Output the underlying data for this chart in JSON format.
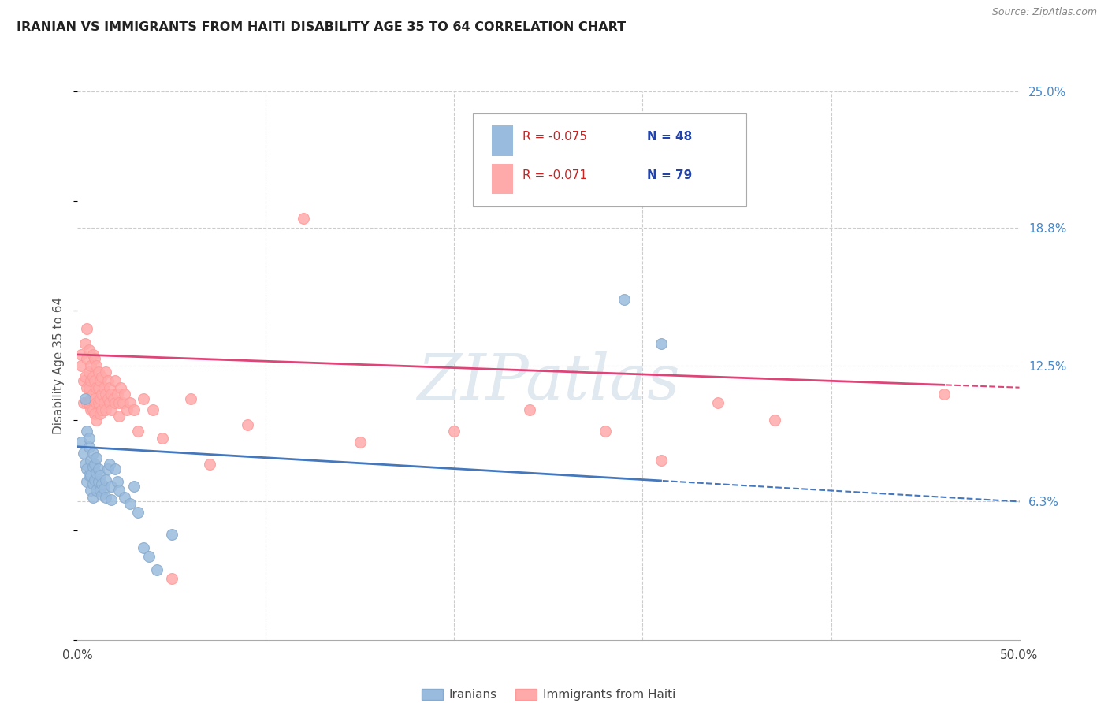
{
  "title": "IRANIAN VS IMMIGRANTS FROM HAITI DISABILITY AGE 35 TO 64 CORRELATION CHART",
  "source": "Source: ZipAtlas.com",
  "ylabel": "Disability Age 35 to 64",
  "xlim": [
    0.0,
    0.5
  ],
  "ylim": [
    0.0,
    0.25
  ],
  "xticks": [
    0.0,
    0.1,
    0.2,
    0.3,
    0.4,
    0.5
  ],
  "xticklabels": [
    "0.0%",
    "",
    "",
    "",
    "",
    "50.0%"
  ],
  "yticks_right": [
    0.063,
    0.125,
    0.188,
    0.25
  ],
  "yticklabels_right": [
    "6.3%",
    "12.5%",
    "18.8%",
    "25.0%"
  ],
  "legend_blue_R": "R = -0.075",
  "legend_blue_N": "N = 48",
  "legend_pink_R": "R = -0.071",
  "legend_pink_N": "N = 79",
  "legend_label_blue": "Iranians",
  "legend_label_pink": "Immigrants from Haiti",
  "blue_scatter_color": "#99BBDD",
  "blue_scatter_edge": "#88AACC",
  "pink_scatter_color": "#FFAAAA",
  "pink_scatter_edge": "#FF9999",
  "blue_line_color": "#4477BB",
  "pink_line_color": "#DD4477",
  "watermark_color": "#DDDDEE",
  "iranians_x": [
    0.002,
    0.003,
    0.004,
    0.004,
    0.005,
    0.005,
    0.005,
    0.006,
    0.006,
    0.006,
    0.007,
    0.007,
    0.007,
    0.008,
    0.008,
    0.008,
    0.008,
    0.009,
    0.009,
    0.01,
    0.01,
    0.01,
    0.011,
    0.011,
    0.012,
    0.012,
    0.013,
    0.013,
    0.014,
    0.015,
    0.015,
    0.016,
    0.017,
    0.018,
    0.018,
    0.02,
    0.021,
    0.022,
    0.025,
    0.028,
    0.03,
    0.032,
    0.035,
    0.038,
    0.042,
    0.05,
    0.29,
    0.31
  ],
  "iranians_y": [
    0.09,
    0.085,
    0.11,
    0.08,
    0.095,
    0.078,
    0.072,
    0.088,
    0.075,
    0.092,
    0.082,
    0.075,
    0.068,
    0.085,
    0.079,
    0.071,
    0.065,
    0.08,
    0.073,
    0.083,
    0.076,
    0.068,
    0.078,
    0.072,
    0.075,
    0.068,
    0.071,
    0.066,
    0.069,
    0.073,
    0.065,
    0.078,
    0.08,
    0.07,
    0.064,
    0.078,
    0.072,
    0.068,
    0.065,
    0.062,
    0.07,
    0.058,
    0.042,
    0.038,
    0.032,
    0.048,
    0.155,
    0.135
  ],
  "haiti_x": [
    0.002,
    0.002,
    0.003,
    0.003,
    0.004,
    0.004,
    0.005,
    0.005,
    0.005,
    0.005,
    0.006,
    0.006,
    0.006,
    0.006,
    0.007,
    0.007,
    0.007,
    0.007,
    0.008,
    0.008,
    0.008,
    0.008,
    0.009,
    0.009,
    0.009,
    0.009,
    0.01,
    0.01,
    0.01,
    0.01,
    0.011,
    0.011,
    0.011,
    0.012,
    0.012,
    0.012,
    0.013,
    0.013,
    0.013,
    0.014,
    0.014,
    0.015,
    0.015,
    0.015,
    0.016,
    0.016,
    0.017,
    0.017,
    0.018,
    0.018,
    0.019,
    0.02,
    0.02,
    0.021,
    0.022,
    0.022,
    0.023,
    0.024,
    0.025,
    0.026,
    0.028,
    0.03,
    0.032,
    0.035,
    0.04,
    0.045,
    0.05,
    0.06,
    0.07,
    0.09,
    0.12,
    0.15,
    0.2,
    0.24,
    0.28,
    0.31,
    0.34,
    0.37,
    0.46
  ],
  "haiti_y": [
    0.125,
    0.13,
    0.118,
    0.108,
    0.135,
    0.12,
    0.128,
    0.115,
    0.108,
    0.142,
    0.132,
    0.122,
    0.115,
    0.108,
    0.125,
    0.118,
    0.11,
    0.105,
    0.13,
    0.12,
    0.112,
    0.105,
    0.128,
    0.118,
    0.11,
    0.103,
    0.125,
    0.115,
    0.108,
    0.1,
    0.122,
    0.115,
    0.108,
    0.118,
    0.11,
    0.103,
    0.12,
    0.112,
    0.105,
    0.115,
    0.108,
    0.122,
    0.112,
    0.105,
    0.118,
    0.11,
    0.115,
    0.108,
    0.112,
    0.105,
    0.11,
    0.118,
    0.108,
    0.112,
    0.108,
    0.102,
    0.115,
    0.108,
    0.112,
    0.105,
    0.108,
    0.105,
    0.095,
    0.11,
    0.105,
    0.092,
    0.028,
    0.11,
    0.08,
    0.098,
    0.192,
    0.09,
    0.095,
    0.105,
    0.095,
    0.082,
    0.108,
    0.1,
    0.112
  ]
}
